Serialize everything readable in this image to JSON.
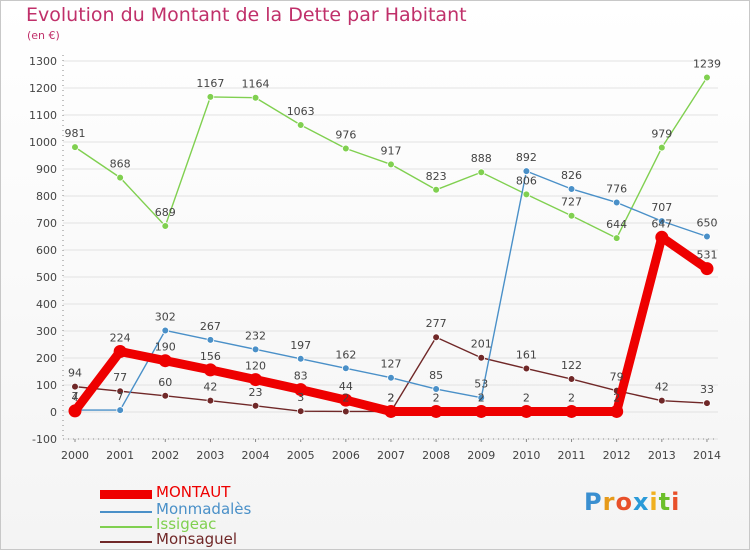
{
  "header": {
    "title": "Evolution du Montant de la Dette par Habitant",
    "subtitle": "(en €)"
  },
  "logo": {
    "text": "Proxiti",
    "letters": [
      "P",
      "r",
      "o",
      "x",
      "i",
      "t",
      "i"
    ],
    "colors": [
      "#3a8fd0",
      "#e69a1a",
      "#e8502a",
      "#2a9ad8",
      "#f0b020",
      "#6cbf2a",
      "#e8502a"
    ]
  },
  "colors": {
    "title": "#c0306a",
    "axis": "#555555",
    "grid": "#e0e0e0"
  },
  "chart_data": {
    "type": "line",
    "title": "Evolution du Montant de la Dette par Habitant",
    "subtitle": "(en €)",
    "x": [
      "2000",
      "2001",
      "2002",
      "2003",
      "2004",
      "2005",
      "2006",
      "2007",
      "2008",
      "2009",
      "2010",
      "2011",
      "2012",
      "2013",
      "2014"
    ],
    "ylim": [
      -100,
      1300
    ],
    "yticks": [
      "-100",
      "0",
      "100",
      "200",
      "300",
      "400",
      "500",
      "600",
      "700",
      "800",
      "900",
      "1000",
      "1100",
      "1200",
      "1300"
    ],
    "grid": "horizontal",
    "legend_position": "bottom-left",
    "series": [
      {
        "name": "MONTAUT",
        "color": "#ee0000",
        "values": [
          4,
          224,
          190,
          156,
          120,
          83,
          44,
          2,
          2,
          2,
          2,
          2,
          2,
          647,
          531
        ],
        "labels": [
          "4",
          "224",
          "190",
          "156",
          "120",
          "83",
          "44",
          "2",
          "2",
          "2",
          "2",
          "2",
          "2",
          "647",
          "531"
        ]
      },
      {
        "name": "Monmadalès",
        "color": "#4a90c8",
        "values": [
          7,
          7,
          302,
          267,
          232,
          197,
          162,
          127,
          85,
          53,
          892,
          826,
          776,
          707,
          650
        ],
        "labels": [
          "7",
          "7",
          "302",
          "267",
          "232",
          "197",
          "162",
          "127",
          "85",
          "53",
          "892",
          "826",
          "776",
          "707",
          "650"
        ]
      },
      {
        "name": "Issigeac",
        "color": "#80d050",
        "values": [
          981,
          868,
          689,
          1167,
          1164,
          1063,
          976,
          917,
          823,
          888,
          806,
          727,
          644,
          979,
          1239
        ],
        "labels": [
          "981",
          "868",
          "689",
          "1167",
          "1164",
          "1063",
          "976",
          "917",
          "823",
          "888",
          "806",
          "727",
          "644",
          "979",
          "1239"
        ]
      },
      {
        "name": "Monsaguel",
        "color": "#702828",
        "values": [
          94,
          77,
          60,
          42,
          23,
          3,
          2,
          2,
          277,
          201,
          161,
          122,
          79,
          42,
          33
        ],
        "labels": [
          "94",
          "77",
          "60",
          "42",
          "23",
          "3",
          "2",
          "2",
          "277",
          "201",
          "161",
          "122",
          "79",
          "42",
          "33"
        ]
      }
    ]
  }
}
